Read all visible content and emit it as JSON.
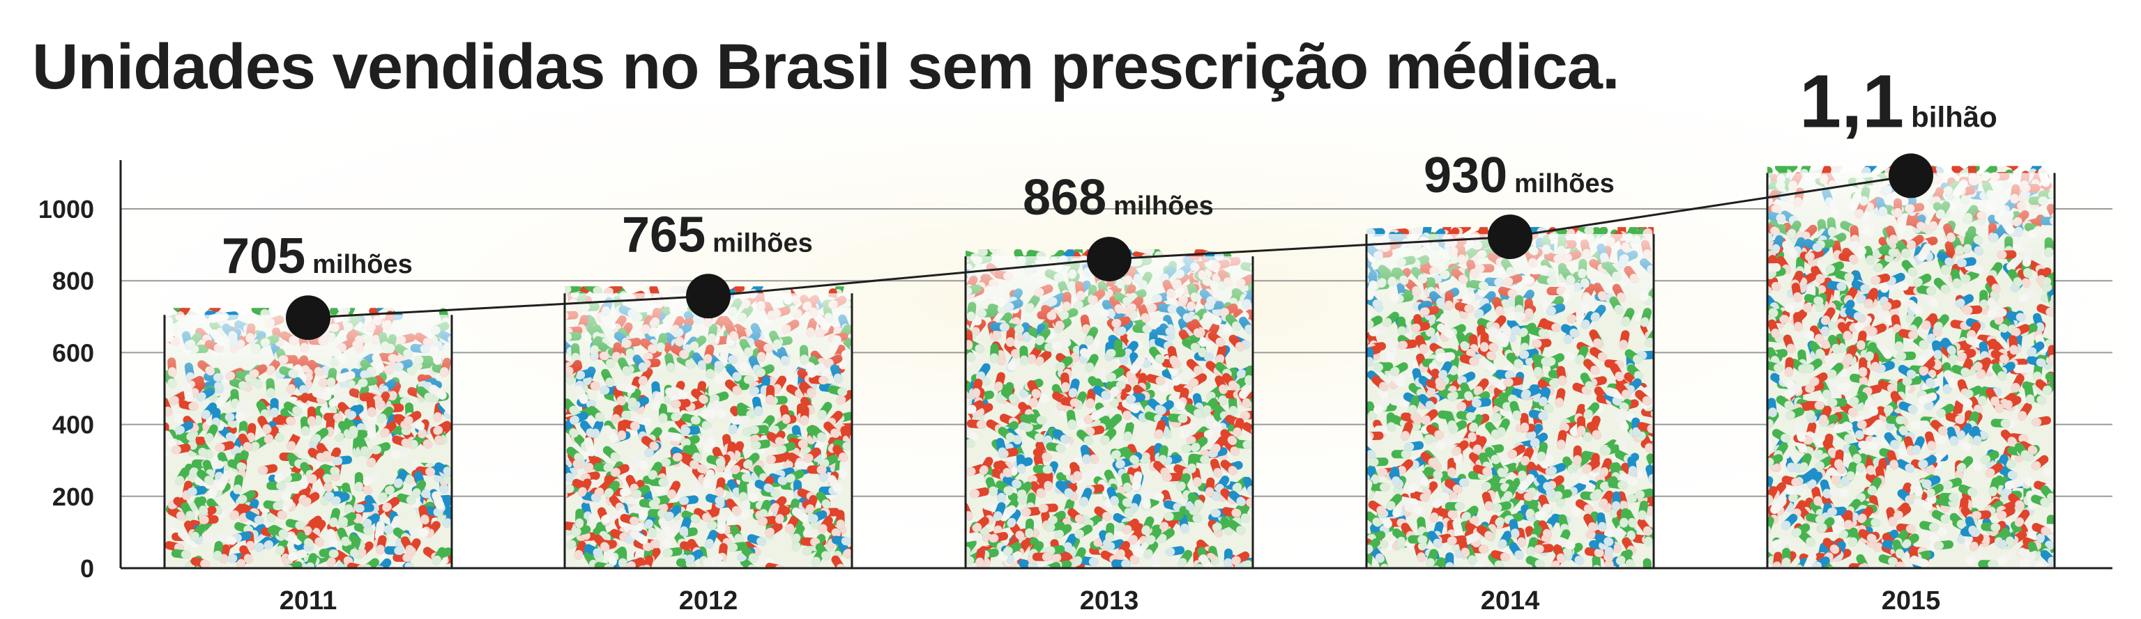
{
  "title": "Unidades vendidas no Brasil sem prescrição médica.",
  "chart_data": {
    "type": "bar",
    "title": "Unidades vendidas no Brasil sem prescrição médica.",
    "categories": [
      "2011",
      "2012",
      "2013",
      "2014",
      "2015"
    ],
    "values": [
      705,
      765,
      868,
      930,
      1100
    ],
    "data_labels": [
      {
        "number": "705",
        "unit": "milhões"
      },
      {
        "number": "765",
        "unit": "milhões"
      },
      {
        "number": "868",
        "unit": "milhões"
      },
      {
        "number": "930",
        "unit": "milhões"
      },
      {
        "number": "1,1",
        "unit": "bilhão"
      }
    ],
    "yticks": [
      0,
      200,
      400,
      600,
      800,
      1000
    ],
    "ylim": [
      0,
      1100
    ],
    "xlabel": "",
    "ylabel": "",
    "grid": true,
    "trend_line": true,
    "colors": {
      "text": "#1f1f1f",
      "grid": "#9a9a9a",
      "pill_red": "#e0442b",
      "pill_green": "#46b34f",
      "pill_blue": "#1e8fc8",
      "pill_white": "#f2f2ee",
      "marker": "#151515"
    }
  }
}
